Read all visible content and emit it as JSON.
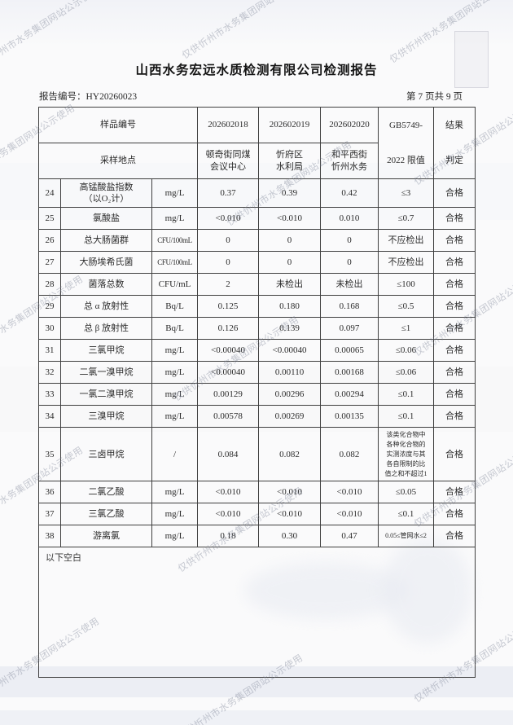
{
  "watermark": "仅供忻州市水务集团网站公示使用",
  "title": "山西水务宏远水质检测有限公司检测报告",
  "report_no": "报告编号：HY20260023",
  "page_indicator": "第 7 页共 9 页",
  "table": {
    "header": {
      "sample_id_label": "样品编号",
      "location_label": "采样地点",
      "sample_ids": [
        "202602018",
        "202602019",
        "202602020"
      ],
      "locations": [
        "顿奇街同煤\n会议中心",
        "忻府区\n水利局",
        "和平西街\n忻州水务"
      ],
      "limit_line1": "GB5749-",
      "limit_line2": "2022 限值",
      "result_line1": "结果",
      "result_line2": "判定"
    },
    "rows": [
      {
        "no": "24",
        "param": "高锰酸盐指数\n（以O₂计）",
        "unit": "mg/L",
        "v1": "0.37",
        "v2": "0.39",
        "v3": "0.42",
        "limit": "≤3",
        "result": "合格"
      },
      {
        "no": "25",
        "param": "氯酸盐",
        "unit": "mg/L",
        "v1": "<0.010",
        "v2": "<0.010",
        "v3": "0.010",
        "limit": "≤0.7",
        "result": "合格"
      },
      {
        "no": "26",
        "param": "总大肠菌群",
        "unit": "CFU/100mL",
        "v1": "0",
        "v2": "0",
        "v3": "0",
        "limit": "不应检出",
        "result": "合格"
      },
      {
        "no": "27",
        "param": "大肠埃希氏菌",
        "unit": "CFU/100mL",
        "v1": "0",
        "v2": "0",
        "v3": "0",
        "limit": "不应检出",
        "result": "合格"
      },
      {
        "no": "28",
        "param": "菌落总数",
        "unit": "CFU/mL",
        "v1": "2",
        "v2": "未检出",
        "v3": "未检出",
        "limit": "≤100",
        "result": "合格"
      },
      {
        "no": "29",
        "param": "总 α 放射性",
        "unit": "Bq/L",
        "v1": "0.125",
        "v2": "0.180",
        "v3": "0.168",
        "limit": "≤0.5",
        "result": "合格"
      },
      {
        "no": "30",
        "param": "总 β 放射性",
        "unit": "Bq/L",
        "v1": "0.126",
        "v2": "0.139",
        "v3": "0.097",
        "limit": "≤1",
        "result": "合格"
      },
      {
        "no": "31",
        "param": "三氯甲烷",
        "unit": "mg/L",
        "v1": "<0.00040",
        "v2": "<0.00040",
        "v3": "0.00065",
        "limit": "≤0.06",
        "result": "合格"
      },
      {
        "no": "32",
        "param": "二氯一溴甲烷",
        "unit": "mg/L",
        "v1": "<0.00040",
        "v2": "0.00110",
        "v3": "0.00168",
        "limit": "≤0.06",
        "result": "合格"
      },
      {
        "no": "33",
        "param": "一氯二溴甲烷",
        "unit": "mg/L",
        "v1": "0.00129",
        "v2": "0.00296",
        "v3": "0.00294",
        "limit": "≤0.1",
        "result": "合格"
      },
      {
        "no": "34",
        "param": "三溴甲烷",
        "unit": "mg/L",
        "v1": "0.00578",
        "v2": "0.00269",
        "v3": "0.00135",
        "limit": "≤0.1",
        "result": "合格"
      },
      {
        "no": "35",
        "param": "三卤甲烷",
        "unit": "/",
        "v1": "0.084",
        "v2": "0.082",
        "v3": "0.082",
        "limit": "该类化合物中\n各种化合物的\n实测浓度与其\n各自限制的比\n值之和不超过1",
        "result": "合格"
      },
      {
        "no": "36",
        "param": "二氯乙酸",
        "unit": "mg/L",
        "v1": "<0.010",
        "v2": "<0.010",
        "v3": "<0.010",
        "limit": "≤0.05",
        "result": "合格"
      },
      {
        "no": "37",
        "param": "三氯乙酸",
        "unit": "mg/L",
        "v1": "<0.010",
        "v2": "<0.010",
        "v3": "<0.010",
        "limit": "≤0.1",
        "result": "合格"
      },
      {
        "no": "38",
        "param": "游离氯",
        "unit": "mg/L",
        "v1": "0.18",
        "v2": "0.30",
        "v3": "0.47",
        "limit": "0.05≤管网水≤2",
        "result": "合格"
      }
    ],
    "blank_note": "以下空白"
  }
}
